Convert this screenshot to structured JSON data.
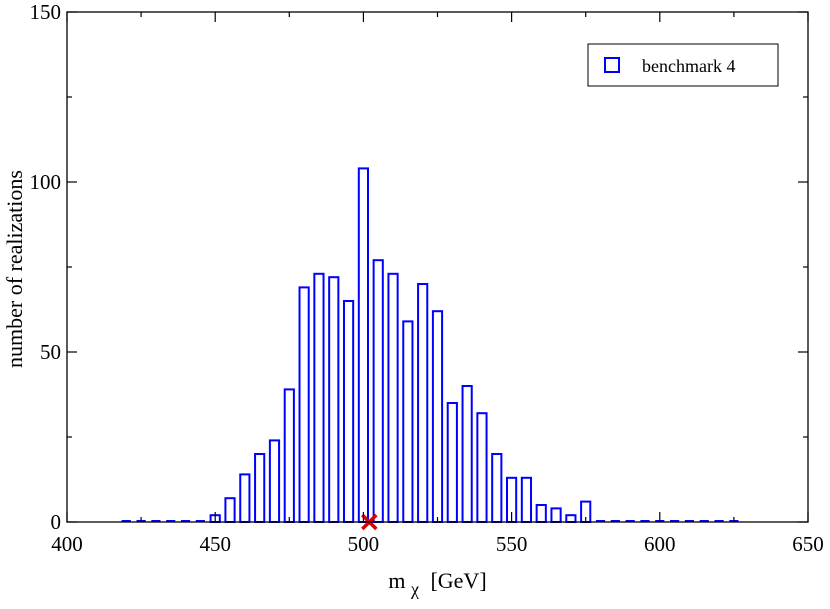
{
  "chart_data": {
    "type": "bar",
    "xlabel": "m",
    "xlabel_sub": "χ",
    "xlabel_unit": "[GeV]",
    "ylabel": "number of realizations",
    "xlim": [
      400,
      650
    ],
    "ylim": [
      0,
      150
    ],
    "x_ticks": [
      "400",
      "450",
      "500",
      "550",
      "600",
      "650"
    ],
    "y_ticks": [
      "0",
      "50",
      "100",
      "150"
    ],
    "grid": false,
    "legend_position": "top-right",
    "series": [
      {
        "name": "benchmark 4",
        "color": "#0000ff",
        "bin_width": 5,
        "bin_centers": [
          420,
          425,
          430,
          435,
          440,
          445,
          450,
          455,
          460,
          465,
          470,
          475,
          480,
          485,
          490,
          495,
          500,
          505,
          510,
          515,
          520,
          525,
          530,
          535,
          540,
          545,
          550,
          555,
          560,
          565,
          570,
          575,
          580,
          585,
          590,
          595,
          600,
          605,
          610,
          615,
          620,
          625
        ],
        "values": [
          0,
          0,
          0,
          0,
          0,
          0,
          2,
          7,
          14,
          20,
          24,
          39,
          69,
          73,
          72,
          65,
          104,
          77,
          73,
          59,
          70,
          62,
          35,
          40,
          32,
          20,
          13,
          13,
          5,
          4,
          2,
          6,
          0,
          0,
          0,
          0,
          0,
          0,
          0,
          0,
          0,
          0
        ]
      }
    ],
    "markers": [
      {
        "type": "cross",
        "x": 502,
        "y": 0,
        "color": "#dd0000"
      }
    ]
  }
}
